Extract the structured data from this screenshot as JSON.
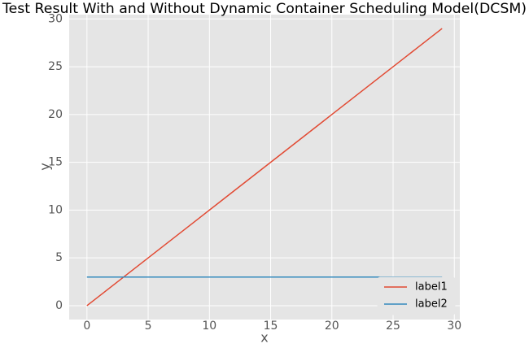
{
  "chart_data": {
    "type": "line",
    "title": "Test Result With and Without Dynamic Container Scheduling Model(DCSM)",
    "x_label": "x",
    "y_label": "y",
    "x": [
      0,
      1,
      2,
      3,
      4,
      5,
      6,
      7,
      8,
      9,
      10,
      11,
      12,
      13,
      14,
      15,
      16,
      17,
      18,
      19,
      20,
      21,
      22,
      23,
      24,
      25,
      26,
      27,
      28,
      29
    ],
    "series": [
      {
        "name": "label1",
        "color": "#E24A33",
        "values": [
          0,
          1,
          2,
          3,
          4,
          5,
          6,
          7,
          8,
          9,
          10,
          11,
          12,
          13,
          14,
          15,
          16,
          17,
          18,
          19,
          20,
          21,
          22,
          23,
          24,
          25,
          26,
          27,
          28,
          29
        ]
      },
      {
        "name": "label2",
        "color": "#348ABD",
        "values": [
          3,
          3,
          3,
          3,
          3,
          3,
          3,
          3,
          3,
          3,
          3,
          3,
          3,
          3,
          3,
          3,
          3,
          3,
          3,
          3,
          3,
          3,
          3,
          3,
          3,
          3,
          3,
          3,
          3,
          3
        ]
      }
    ],
    "xlim": [
      -1.45,
      30.45
    ],
    "ylim": [
      -1.45,
      30.45
    ],
    "xticks": [
      0,
      5,
      10,
      15,
      20,
      25,
      30
    ],
    "yticks": [
      0,
      5,
      10,
      15,
      20,
      25,
      30
    ],
    "grid": true,
    "legend": "lower right"
  }
}
